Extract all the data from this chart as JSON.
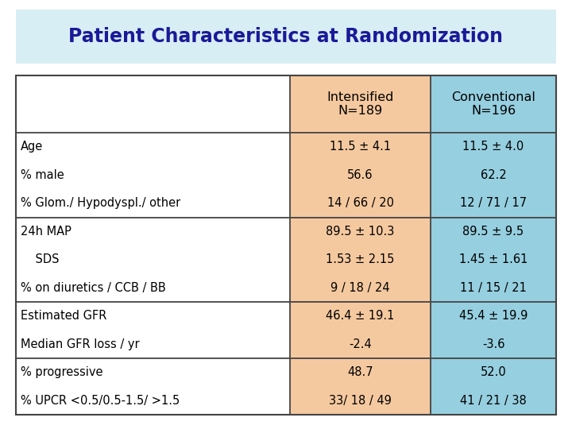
{
  "title": "Patient Characteristics at Randomization",
  "title_color": "#1a1a99",
  "title_bg_color": "#d8eef5",
  "header_row": [
    "",
    "Intensified\nN=189",
    "Conventional\nN=196"
  ],
  "col1_bg": "#f5c9a0",
  "col2_bg": "#96cfe0",
  "rows": [
    [
      "Age",
      "11.5 ± 4.1",
      "11.5 ± 4.0"
    ],
    [
      "% male",
      "56.6",
      "62.2"
    ],
    [
      "% Glom./ Hypodyspl./ other",
      "14 / 66 / 20",
      "12 / 71 / 17"
    ],
    [
      "24h MAP",
      "89.5 ± 10.3",
      "89.5 ± 9.5"
    ],
    [
      "    SDS",
      "1.53 ± 2.15",
      "1.45 ± 1.61"
    ],
    [
      "% on diuretics / CCB / BB",
      "9 / 18 / 24",
      "11 / 15 / 21"
    ],
    [
      "Estimated GFR",
      "46.4 ± 19.1",
      "45.4 ± 19.9"
    ],
    [
      "Median GFR loss / yr",
      "-2.4",
      "-3.6"
    ],
    [
      "% progressive",
      "48.7",
      "52.0"
    ],
    [
      "% UPCR <0.5/0.5-1.5/ >1.5",
      "33/ 18 / 49",
      "41 / 21 / 38"
    ]
  ],
  "separator_rows": [
    3,
    6,
    8
  ],
  "bg_color": "#ffffff",
  "table_border_color": "#444444",
  "font_size": 10.5,
  "header_font_size": 11.5,
  "title_fontsize": 17
}
